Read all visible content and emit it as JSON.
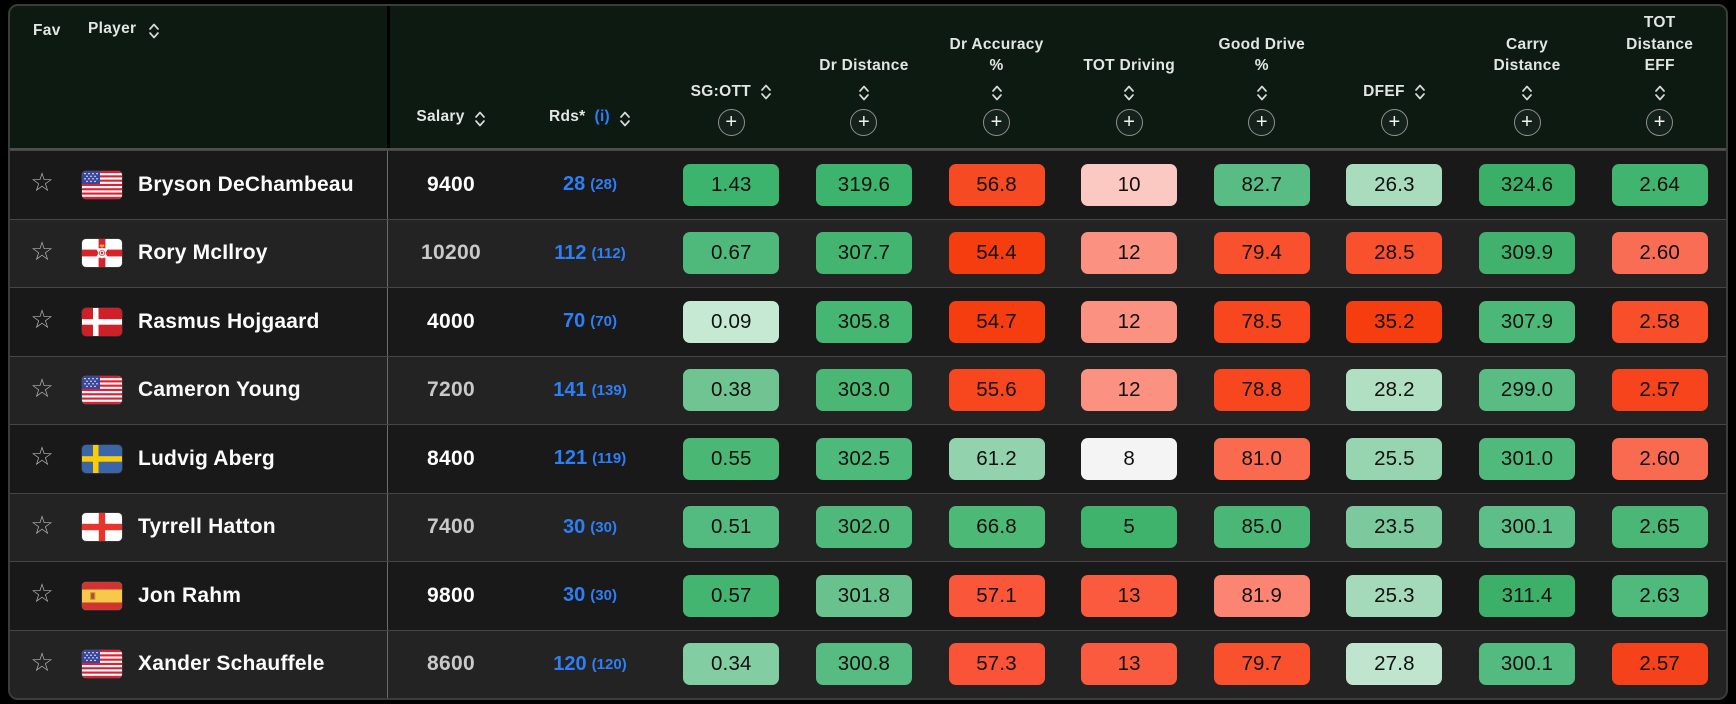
{
  "colors": {
    "page_bg": "#000000",
    "header_bg": "#0c1a12",
    "row_odd_bg": "#191919",
    "row_even_bg": "#232323",
    "rds_blue": "#2d7ef7"
  },
  "header": {
    "fav": "Fav",
    "player": "Player",
    "salary": "Salary",
    "rds": "Rds*",
    "rds_info": "(i)",
    "stat_columns": [
      {
        "id": "sg-ott",
        "lines": [
          "SG:OTT"
        ],
        "inline_sort": true
      },
      {
        "id": "dr-distance",
        "lines": [
          "Dr Distance"
        ],
        "inline_sort": false
      },
      {
        "id": "dr-accuracy-pct",
        "lines": [
          "Dr Accuracy",
          "%"
        ],
        "inline_sort": false
      },
      {
        "id": "tot-driving",
        "lines": [
          "TOT Driving"
        ],
        "inline_sort": false
      },
      {
        "id": "good-drive-pct",
        "lines": [
          "Good Drive",
          "%"
        ],
        "inline_sort": false
      },
      {
        "id": "dfef",
        "lines": [
          "DFEF"
        ],
        "inline_sort": true
      },
      {
        "id": "carry-distance",
        "lines": [
          "Carry",
          "Distance"
        ],
        "inline_sort": false
      },
      {
        "id": "tot-distance-eff",
        "lines": [
          "TOT",
          "Distance",
          "EFF"
        ],
        "inline_sort": false
      }
    ]
  },
  "players": [
    {
      "name": "Bryson DeChambeau",
      "country": "us",
      "salary": "9400",
      "rds": "28",
      "rds_paren": "(28)",
      "stats": [
        {
          "v": "1.43",
          "bg": "#3db46d"
        },
        {
          "v": "319.6",
          "bg": "#3db46d"
        },
        {
          "v": "56.8",
          "bg": "#f64a22"
        },
        {
          "v": "10",
          "bg": "#fcc8c2"
        },
        {
          "v": "82.7",
          "bg": "#5abc85"
        },
        {
          "v": "26.3",
          "bg": "#a9dcbd"
        },
        {
          "v": "324.6",
          "bg": "#3bae68"
        },
        {
          "v": "2.64",
          "bg": "#41b46f"
        }
      ]
    },
    {
      "name": "Rory McIlroy",
      "country": "nir",
      "salary": "10200",
      "rds": "112",
      "rds_paren": "(112)",
      "stats": [
        {
          "v": "0.67",
          "bg": "#4fb97b"
        },
        {
          "v": "307.7",
          "bg": "#44b571"
        },
        {
          "v": "54.4",
          "bg": "#f63d10"
        },
        {
          "v": "12",
          "bg": "#fb9181"
        },
        {
          "v": "79.4",
          "bg": "#f9502e"
        },
        {
          "v": "28.5",
          "bg": "#f9502e"
        },
        {
          "v": "309.9",
          "bg": "#40b26d"
        },
        {
          "v": "2.60",
          "bg": "#f96d54"
        }
      ]
    },
    {
      "name": "Rasmus Hojgaard",
      "country": "dk",
      "salary": "4000",
      "rds": "70",
      "rds_paren": "(70)",
      "stats": [
        {
          "v": "0.09",
          "bg": "#c6e9d4"
        },
        {
          "v": "305.8",
          "bg": "#46b673"
        },
        {
          "v": "54.7",
          "bg": "#f63d10"
        },
        {
          "v": "12",
          "bg": "#fb9181"
        },
        {
          "v": "78.5",
          "bg": "#f8471e"
        },
        {
          "v": "35.2",
          "bg": "#f63d10"
        },
        {
          "v": "307.9",
          "bg": "#4cb878"
        },
        {
          "v": "2.58",
          "bg": "#f84e29"
        }
      ]
    },
    {
      "name": "Cameron Young",
      "country": "us",
      "salary": "7200",
      "rds": "141",
      "rds_paren": "(139)",
      "stats": [
        {
          "v": "0.38",
          "bg": "#6fc492"
        },
        {
          "v": "303.0",
          "bg": "#4ab775"
        },
        {
          "v": "55.6",
          "bg": "#f8461e"
        },
        {
          "v": "12",
          "bg": "#fb9181"
        },
        {
          "v": "78.8",
          "bg": "#f8471e"
        },
        {
          "v": "28.2",
          "bg": "#b0dfc2"
        },
        {
          "v": "299.0",
          "bg": "#58bc83"
        },
        {
          "v": "2.57",
          "bg": "#f8441c"
        }
      ]
    },
    {
      "name": "Ludvig Aberg",
      "country": "se",
      "salary": "8400",
      "rds": "121",
      "rds_paren": "(119)",
      "stats": [
        {
          "v": "0.55",
          "bg": "#4ab775"
        },
        {
          "v": "302.5",
          "bg": "#4db97a"
        },
        {
          "v": "61.2",
          "bg": "#92d3ad"
        },
        {
          "v": "8",
          "bg": "#f4f4f4"
        },
        {
          "v": "81.0",
          "bg": "#f96a4e"
        },
        {
          "v": "25.5",
          "bg": "#97d5b1"
        },
        {
          "v": "301.0",
          "bg": "#50ba7d"
        },
        {
          "v": "2.60",
          "bg": "#f96b51"
        }
      ]
    },
    {
      "name": "Tyrrell Hatton",
      "country": "en",
      "salary": "7400",
      "rds": "30",
      "rds_paren": "(30)",
      "stats": [
        {
          "v": "0.51",
          "bg": "#53bb80"
        },
        {
          "v": "302.0",
          "bg": "#4eb97b"
        },
        {
          "v": "66.8",
          "bg": "#4db977"
        },
        {
          "v": "5",
          "bg": "#3fb26c"
        },
        {
          "v": "85.0",
          "bg": "#4ab777"
        },
        {
          "v": "23.5",
          "bg": "#7bc99c"
        },
        {
          "v": "300.1",
          "bg": "#5dbe88"
        },
        {
          "v": "2.65",
          "bg": "#4ab777"
        }
      ]
    },
    {
      "name": "Jon Rahm",
      "country": "es",
      "salary": "9800",
      "rds": "30",
      "rds_paren": "(30)",
      "stats": [
        {
          "v": "0.57",
          "bg": "#44b571"
        },
        {
          "v": "301.8",
          "bg": "#69c28e"
        },
        {
          "v": "57.1",
          "bg": "#fa5639"
        },
        {
          "v": "13",
          "bg": "#fa5b3e"
        },
        {
          "v": "81.9",
          "bg": "#fb8472"
        },
        {
          "v": "25.3",
          "bg": "#a4dab9"
        },
        {
          "v": "311.4",
          "bg": "#3cb069"
        },
        {
          "v": "2.63",
          "bg": "#50ba7d"
        }
      ]
    },
    {
      "name": "Xander Schauffele",
      "country": "us",
      "salary": "8600",
      "rds": "120",
      "rds_paren": "(120)",
      "stats": [
        {
          "v": "0.34",
          "bg": "#83cda2"
        },
        {
          "v": "300.8",
          "bg": "#56bc82"
        },
        {
          "v": "57.3",
          "bg": "#fa5338"
        },
        {
          "v": "13",
          "bg": "#fa5b3e"
        },
        {
          "v": "79.7",
          "bg": "#f9512d"
        },
        {
          "v": "27.8",
          "bg": "#bfe5cf"
        },
        {
          "v": "300.1",
          "bg": "#53bb80"
        },
        {
          "v": "2.57",
          "bg": "#f6421a"
        }
      ]
    }
  ]
}
